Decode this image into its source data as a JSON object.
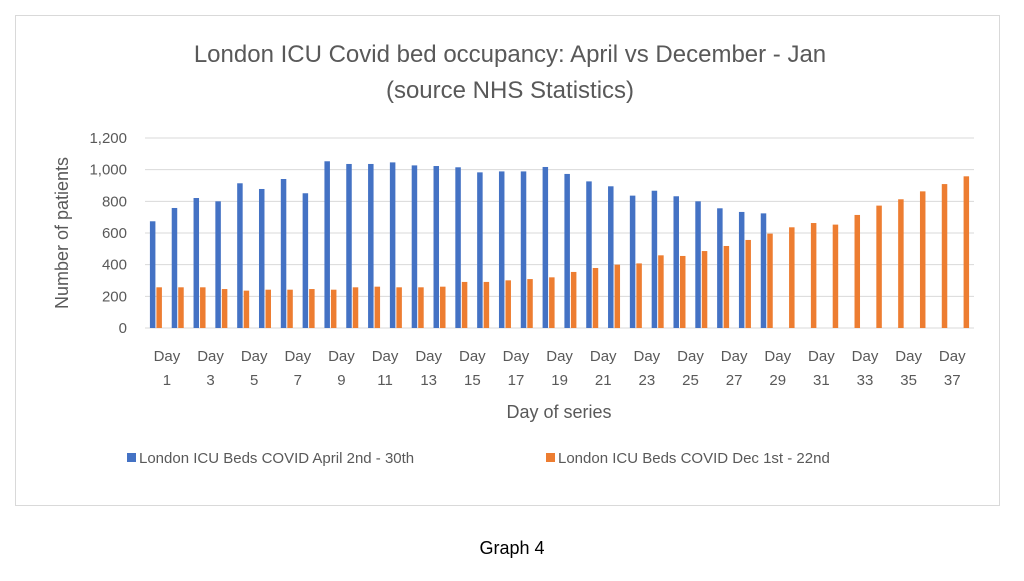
{
  "caption": "Graph 4",
  "chart_data": {
    "type": "bar",
    "title": "London ICU Covid bed occupancy: April vs December - Jan",
    "subtitle": "(source NHS Statistics)",
    "xlabel": "Day of series",
    "ylabel": "Number of patients",
    "ylim": [
      0,
      1200
    ],
    "yticks": [
      0,
      200,
      400,
      600,
      800,
      1000,
      1200
    ],
    "ytick_labels": [
      "0",
      "200",
      "400",
      "600",
      "800",
      "1,000",
      "1,200"
    ],
    "grid": true,
    "legend_position": "bottom",
    "categories": [
      "Day 1",
      "Day 2",
      "Day 3",
      "Day 4",
      "Day 5",
      "Day 6",
      "Day 7",
      "Day 8",
      "Day 9",
      "Day 10",
      "Day 11",
      "Day 12",
      "Day 13",
      "Day 14",
      "Day 15",
      "Day 16",
      "Day 17",
      "Day 18",
      "Day 19",
      "Day 20",
      "Day 21",
      "Day 22",
      "Day 23",
      "Day 24",
      "Day 25",
      "Day 26",
      "Day 27",
      "Day 28",
      "Day 29",
      "Day 30",
      "Day 31",
      "Day 32",
      "Day 33",
      "Day 34",
      "Day 35",
      "Day 36",
      "Day 37",
      "Day 38"
    ],
    "xtick_labels_shown": [
      "Day 1",
      "Day 3",
      "Day 5",
      "Day 7",
      "Day 9",
      "Day 11",
      "Day 13",
      "Day 15",
      "Day 17",
      "Day 19",
      "Day 21",
      "Day 23",
      "Day 25",
      "Day 27",
      "Day 29",
      "Day 31",
      "Day 33",
      "Day 35",
      "Day 37"
    ],
    "series": [
      {
        "name": "London ICU Beds COVID April 2nd - 30th",
        "color": "#4472c4",
        "values": [
          674,
          758,
          821,
          800,
          914,
          878,
          941,
          851,
          1053,
          1036,
          1036,
          1046,
          1027,
          1023,
          1015,
          983,
          989,
          989,
          1017,
          973,
          926,
          895,
          836,
          867,
          832,
          800,
          756,
          733,
          724,
          null,
          null,
          null,
          null,
          null,
          null,
          null,
          null,
          null
        ]
      },
      {
        "name": "London ICU Beds COVID Dec 1st - 22nd",
        "color": "#ed7d31",
        "values": [
          257,
          257,
          257,
          246,
          236,
          242,
          242,
          246,
          242,
          257,
          261,
          257,
          257,
          261,
          291,
          291,
          301,
          309,
          320,
          354,
          379,
          400,
          408,
          459,
          455,
          486,
          518,
          556,
          596,
          636,
          663,
          653,
          714,
          773,
          813,
          863,
          909,
          958
        ]
      }
    ]
  }
}
